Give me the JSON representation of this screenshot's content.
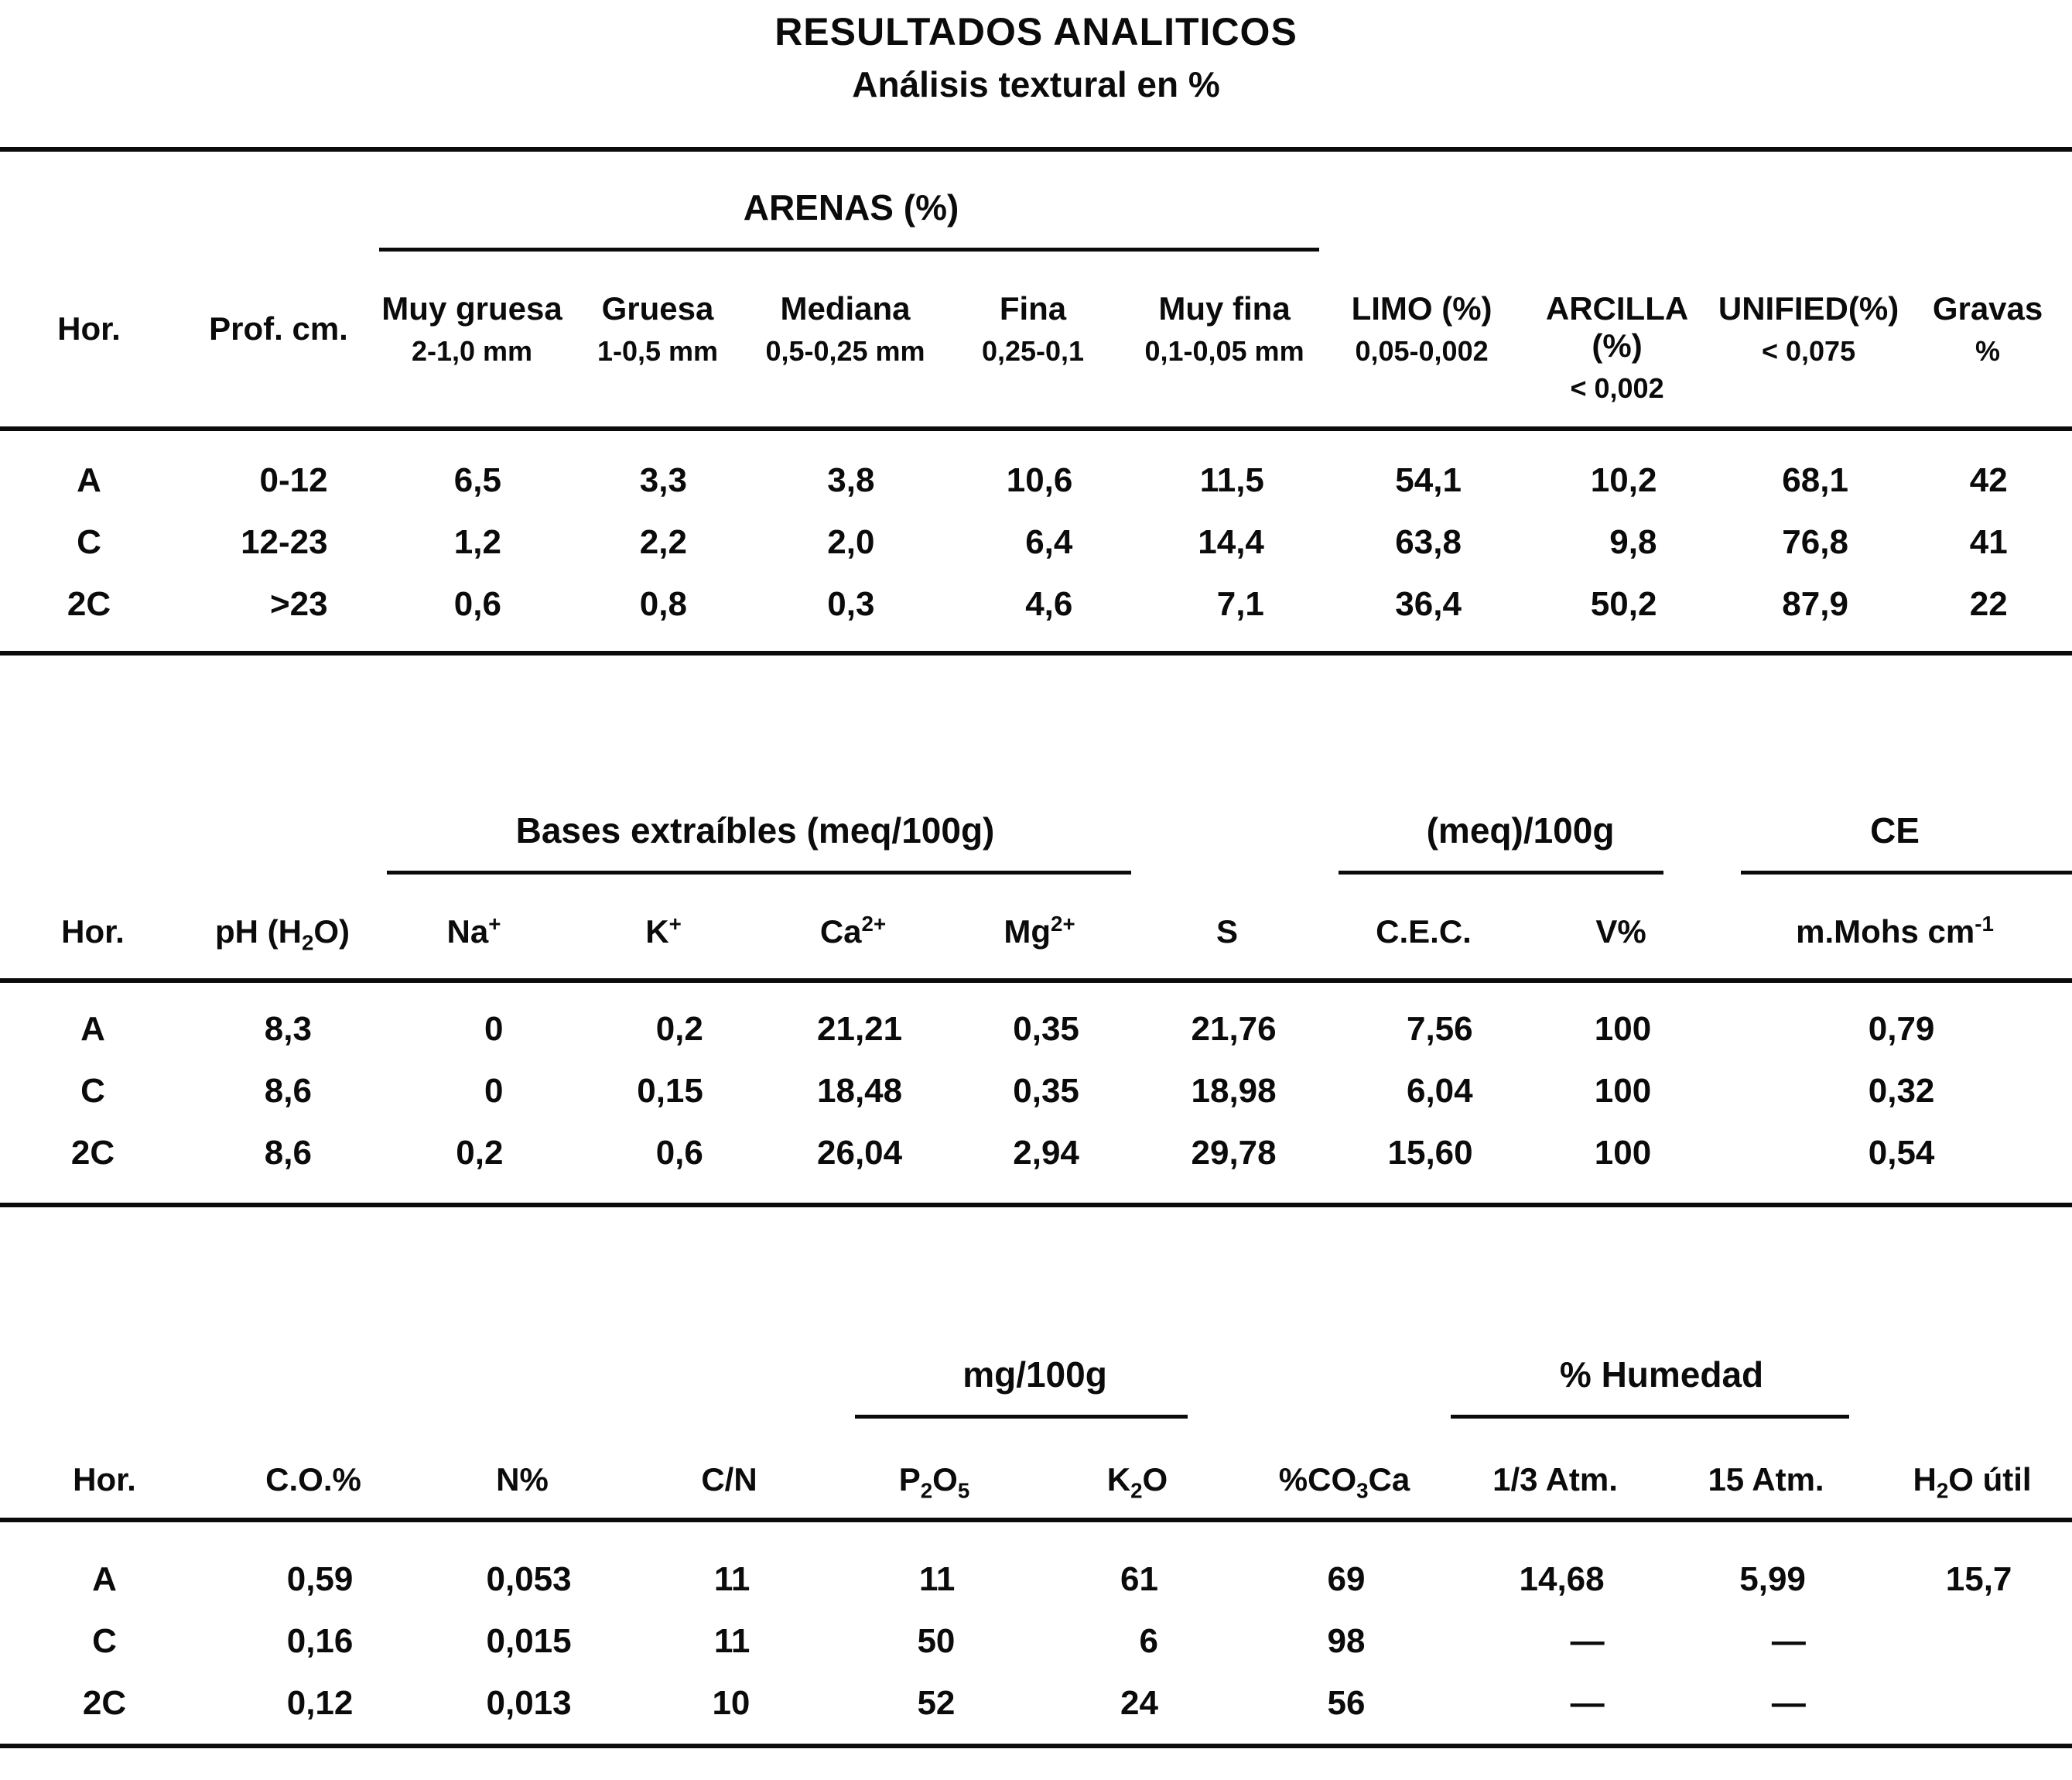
{
  "colors": {
    "ink": "#0b0b0b",
    "paper": "#ffffff"
  },
  "title": "RESULTADOS ANALITICOS",
  "subtitle": "Análisis textural en %",
  "tables": [
    {
      "groups": [
        {
          "label": "ARENAS (%)"
        }
      ],
      "columns": [
        {
          "label": "Hor.",
          "sub": ""
        },
        {
          "label": "Prof. cm.",
          "sub": ""
        },
        {
          "label": "Muy gruesa",
          "sub": "2-1,0 mm"
        },
        {
          "label": "Gruesa",
          "sub": "1-0,5 mm"
        },
        {
          "label": "Mediana",
          "sub": "0,5-0,25 mm"
        },
        {
          "label": "Fina",
          "sub": "0,25-0,1"
        },
        {
          "label": "Muy fina",
          "sub": "0,1-0,05 mm"
        },
        {
          "label": "LIMO (%)",
          "sub": "0,05-0,002"
        },
        {
          "label": "ARCILLA (%)",
          "sub": "< 0,002"
        },
        {
          "label": "UNIFIED(%)",
          "sub": "< 0,075"
        },
        {
          "label": "Gravas",
          "sub": "%"
        }
      ],
      "rows": [
        [
          "A",
          "0-12",
          "6,5",
          "3,3",
          "3,8",
          "10,6",
          "11,5",
          "54,1",
          "10,2",
          "68,1",
          "42"
        ],
        [
          "C",
          "12-23",
          "1,2",
          "2,2",
          "2,0",
          "6,4",
          "14,4",
          "63,8",
          "9,8",
          "76,8",
          "41"
        ],
        [
          "2C",
          ">23",
          "0,6",
          "0,8",
          "0,3",
          "4,6",
          "7,1",
          "36,4",
          "50,2",
          "87,9",
          "22"
        ]
      ]
    },
    {
      "groups": [
        {
          "label": "Bases extraíbles (meq/100g)"
        },
        {
          "label": "(meq)/100g"
        },
        {
          "label": "CE"
        }
      ],
      "columns": [
        "Hor.",
        "pH (H~2~O)",
        "Na^+^",
        "K^+^",
        "Ca^2+^",
        "Mg^2+^",
        "S",
        "C.E.C.",
        "V%",
        "m.Mohs cm^-1^"
      ],
      "rows": [
        [
          "A",
          "8,3",
          "0",
          "0,2",
          "21,21",
          "0,35",
          "21,76",
          "7,56",
          "100",
          "0,79"
        ],
        [
          "C",
          "8,6",
          "0",
          "0,15",
          "18,48",
          "0,35",
          "18,98",
          "6,04",
          "100",
          "0,32"
        ],
        [
          "2C",
          "8,6",
          "0,2",
          "0,6",
          "26,04",
          "2,94",
          "29,78",
          "15,60",
          "100",
          "0,54"
        ]
      ]
    },
    {
      "groups": [
        {
          "label": "mg/100g"
        },
        {
          "label": "% Humedad"
        }
      ],
      "columns": [
        "Hor.",
        "C.O.%",
        "N%",
        "C/N",
        "P~2~O~5~",
        "K~2~O",
        "%CO~3~Ca",
        "1/3 Atm.",
        "15 Atm.",
        "H~2~O útil"
      ],
      "rows": [
        [
          "A",
          "0,59",
          "0,053",
          "11",
          "11",
          "61",
          "69",
          "14,68",
          "5,99",
          "15,7"
        ],
        [
          "C",
          "0,16",
          "0,015",
          "11",
          "50",
          "6",
          "98",
          "—",
          "—",
          ""
        ],
        [
          "2C",
          "0,12",
          "0,013",
          "10",
          "52",
          "24",
          "56",
          "—",
          "—",
          ""
        ]
      ]
    }
  ]
}
